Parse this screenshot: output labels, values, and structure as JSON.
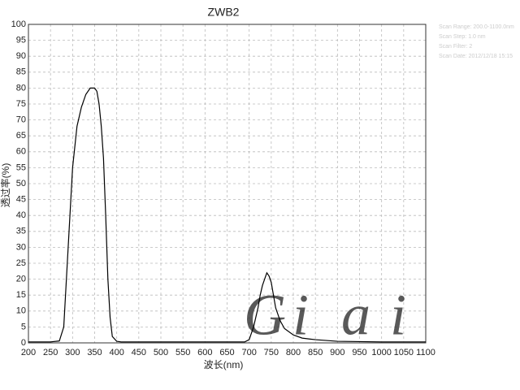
{
  "chart_data": {
    "type": "line",
    "title": "ZWB2",
    "x_label": "波长(nm)",
    "y_label": "透过率(%)",
    "notes": [
      "Scan Range: 200.0-1100.0nm",
      "Scan Step: 1.0 nm",
      "Scan Filter: 2",
      "Scan Date: 2012/12/18 15:15"
    ],
    "watermark": {
      "letters": [
        "G",
        "i",
        "a",
        "i"
      ],
      "colors": [
        "#e86a6a",
        "#e8d060",
        "#6cc06c",
        "#6a70e0"
      ]
    },
    "x": [
      200,
      250,
      270,
      280,
      290,
      300,
      310,
      320,
      330,
      340,
      350,
      355,
      360,
      365,
      370,
      375,
      380,
      385,
      390,
      400,
      410,
      500,
      600,
      690,
      700,
      705,
      710,
      715,
      720,
      725,
      730,
      735,
      740,
      745,
      750,
      755,
      760,
      770,
      780,
      800,
      820,
      850,
      900,
      1000,
      1100
    ],
    "series": [
      {
        "name": "ZWB2",
        "color": "#000000",
        "values": [
          0.3,
          0.3,
          0.6,
          5,
          30,
          55,
          68,
          74,
          78,
          80,
          80,
          79,
          75,
          68,
          58,
          40,
          20,
          8,
          2,
          0.5,
          0.3,
          0.3,
          0.3,
          0.3,
          1,
          3,
          5,
          8,
          11,
          15,
          18,
          20,
          22,
          21,
          19,
          15,
          11,
          7,
          4.5,
          2.5,
          1.5,
          1,
          0.5,
          0.3,
          0.3
        ]
      }
    ],
    "xlim": [
      200,
      1100
    ],
    "ylim": [
      0,
      100
    ],
    "xticks": [
      200,
      250,
      300,
      350,
      400,
      450,
      500,
      550,
      600,
      650,
      700,
      750,
      800,
      850,
      900,
      950,
      1000,
      1050,
      1100
    ],
    "yticks": [
      0,
      5,
      10,
      15,
      20,
      25,
      30,
      35,
      40,
      45,
      50,
      55,
      60,
      65,
      70,
      75,
      80,
      85,
      90,
      95,
      100
    ],
    "grid": true
  }
}
